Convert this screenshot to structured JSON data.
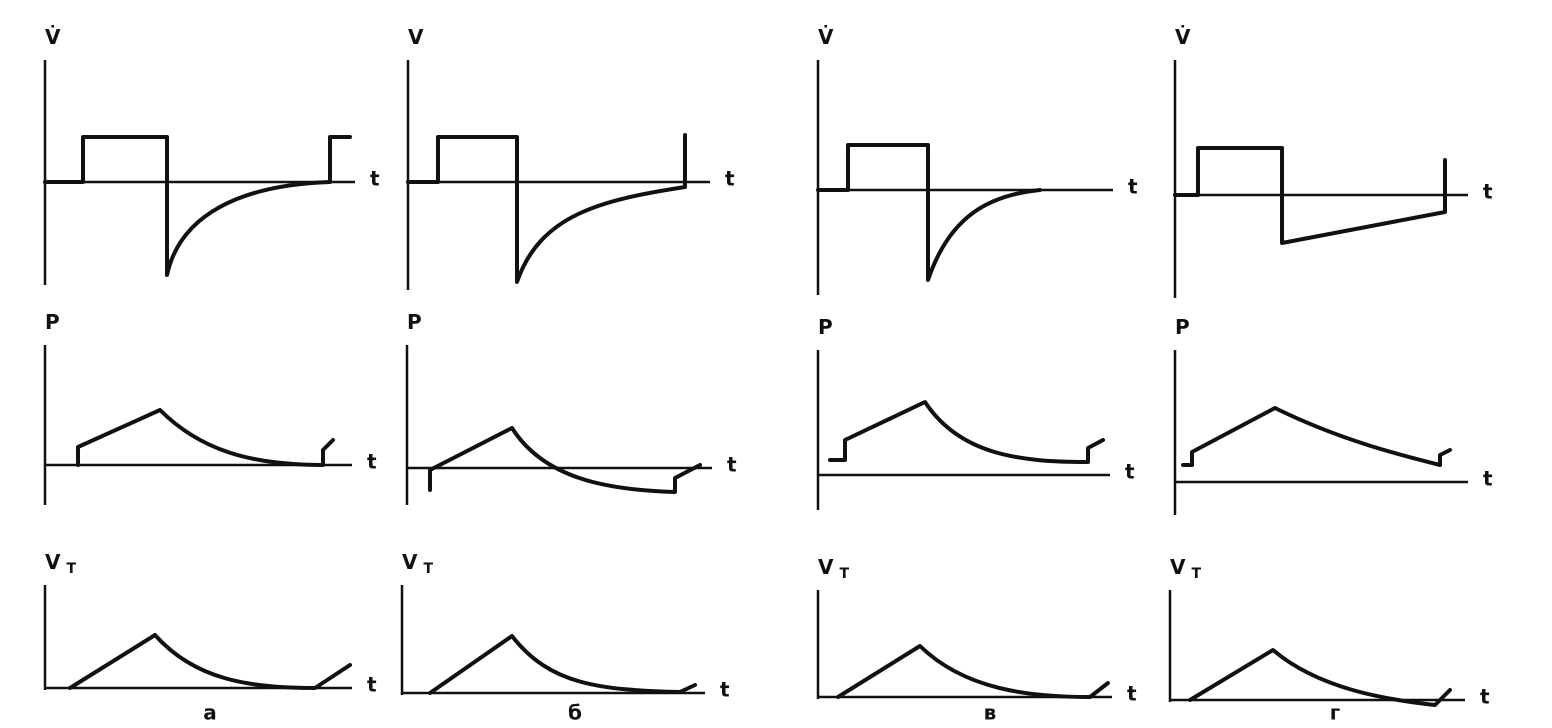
{
  "panels": [
    {
      "caption": "а",
      "plots": [
        {
          "y_label": "V̇",
          "x_label": "t"
        },
        {
          "y_label": "P",
          "x_label": "t"
        },
        {
          "y_label": "V",
          "y_label_sub": "T",
          "x_label": "t"
        }
      ]
    },
    {
      "caption": "б",
      "plots": [
        {
          "y_label": "V",
          "x_label": "t"
        },
        {
          "y_label": "P",
          "x_label": "t"
        },
        {
          "y_label": "V",
          "y_label_sub": "T",
          "x_label": "t"
        }
      ]
    },
    {
      "caption": "в",
      "plots": [
        {
          "y_label": "V̇",
          "x_label": "t"
        },
        {
          "y_label": "P",
          "x_label": "t"
        },
        {
          "y_label": "V",
          "y_label_sub": "T",
          "x_label": "t"
        }
      ]
    },
    {
      "caption": "г",
      "plots": [
        {
          "y_label": "V̇",
          "x_label": "t"
        },
        {
          "y_label": "P",
          "x_label": "t"
        },
        {
          "y_label": "V",
          "y_label_sub": "T",
          "x_label": "t"
        }
      ]
    }
  ]
}
